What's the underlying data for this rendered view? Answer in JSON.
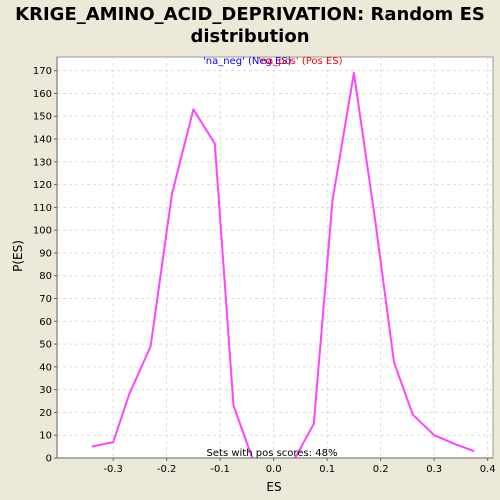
{
  "chart_data": {
    "type": "line",
    "title_lines": [
      "KRIGE_AMINO_ACID_DEPRIVATION: Random ES",
      "distribution"
    ],
    "xlabel": "ES",
    "ylabel": "P(ES)",
    "xlim": [
      -0.405,
      0.41
    ],
    "ylim": [
      0,
      176
    ],
    "x_ticks": [
      -0.3,
      -0.2,
      -0.1,
      0.0,
      0.1,
      0.2,
      0.3,
      0.4
    ],
    "x_tick_labels": [
      "-0.3",
      "-0.2",
      "-0.1",
      "0.0",
      "0.1",
      "0.2",
      "0.3",
      "0.4"
    ],
    "y_ticks": [
      0,
      10,
      20,
      30,
      40,
      50,
      60,
      70,
      80,
      90,
      100,
      110,
      120,
      130,
      140,
      150,
      160,
      170
    ],
    "y_tick_labels": [
      "0",
      "10",
      "20",
      "30",
      "40",
      "50",
      "60",
      "70",
      "80",
      "90",
      "100",
      "110",
      "120",
      "130",
      "140",
      "150",
      "160",
      "170"
    ],
    "grid": true,
    "legend_placement": "top-center",
    "legend": [
      {
        "label": "'na_neg' (Neg ES)",
        "color": "#0000ff"
      },
      {
        "label": "'na_pos' (Pos ES)",
        "color": "#ff0000"
      }
    ],
    "annotation": "Sets with pos scores: 48%",
    "series_color": "#ff44ff",
    "series": [
      {
        "points": [
          [
            -0.34,
            5
          ],
          [
            -0.3,
            7
          ],
          [
            -0.27,
            28
          ],
          [
            -0.23,
            49
          ],
          [
            -0.19,
            116
          ],
          [
            -0.15,
            153
          ],
          [
            -0.11,
            138
          ],
          [
            -0.075,
            23
          ],
          [
            -0.04,
            0
          ]
        ]
      },
      {
        "points": [
          [
            0.04,
            0
          ],
          [
            0.075,
            15
          ],
          [
            0.11,
            113
          ],
          [
            0.15,
            169
          ],
          [
            0.19,
            104
          ],
          [
            0.225,
            42
          ],
          [
            0.26,
            19
          ],
          [
            0.3,
            10
          ],
          [
            0.34,
            6
          ],
          [
            0.375,
            3
          ]
        ]
      }
    ]
  }
}
